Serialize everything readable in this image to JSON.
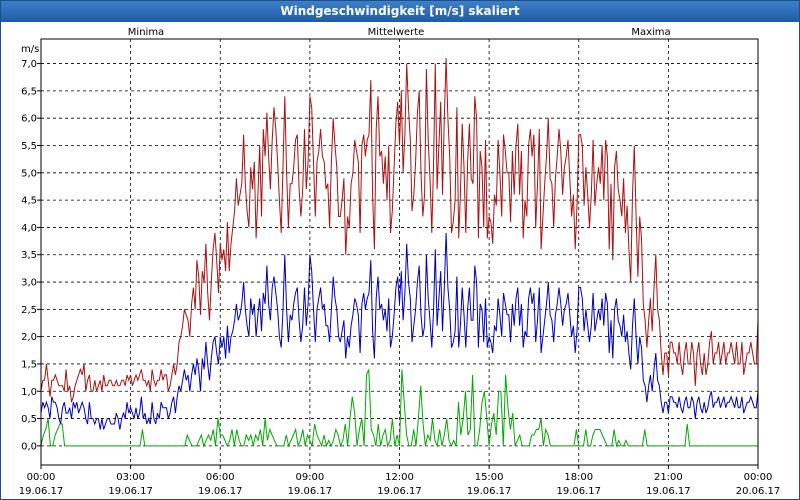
{
  "window": {
    "title": "Windgeschwindigkeit [m/s] skaliert"
  },
  "chart_data": {
    "type": "line",
    "title": "Windgeschwindigkeit [m/s] skaliert",
    "ylabel": "m/s",
    "ylim": [
      -0.35,
      7.45
    ],
    "xlim_hours": [
      0,
      24
    ],
    "grid": true,
    "legend_placement": "top",
    "y_ticks": [
      "0,0",
      "0,5",
      "1,0",
      "1,5",
      "2,0",
      "2,5",
      "3,0",
      "3,5",
      "4,0",
      "4,5",
      "5,0",
      "5,5",
      "6,0",
      "6,5",
      "7,0"
    ],
    "x_ticks": [
      {
        "time": "00:00",
        "date": "19.06.17"
      },
      {
        "time": "03:00",
        "date": "19.06.17"
      },
      {
        "time": "06:00",
        "date": "19.06.17"
      },
      {
        "time": "09:00",
        "date": "19.06.17"
      },
      {
        "time": "12:00",
        "date": "19.06.17"
      },
      {
        "time": "15:00",
        "date": "19.06.17"
      },
      {
        "time": "18:00",
        "date": "19.06.17"
      },
      {
        "time": "21:00",
        "date": "19.06.17"
      },
      {
        "time": "00:00",
        "date": "20.06.17"
      }
    ],
    "series": [
      {
        "name": "Minima",
        "color": "#00aa00",
        "values": [
          0.0,
          0.2,
          0.3,
          0.5,
          0.0,
          0.0,
          0.2,
          0.3,
          0.4,
          0.4,
          0.0,
          0.0,
          0.0,
          0.0,
          0.0,
          0.0,
          0.0,
          0.0,
          0.0,
          0.0,
          0.0,
          0.0,
          0.0,
          0.0,
          0.0,
          0.0,
          0.0,
          0.0,
          0.0,
          0.0,
          0.0,
          0.0,
          0.0,
          0.0,
          0.0,
          0.0,
          0.0,
          0.0,
          0.0,
          0.0,
          0.0,
          0.0,
          0.0,
          0.3,
          0.0,
          0.0,
          0.0,
          0.0,
          0.0,
          0.0,
          0.0,
          0.0,
          0.0,
          0.0,
          0.0,
          0.0,
          0.0,
          0.0,
          0.0,
          0.0,
          0.0,
          0.0,
          0.2,
          0.1,
          0.0,
          0.0,
          0.0,
          0.1,
          0.2,
          0.0,
          0.1,
          0.2,
          0.1,
          0.3,
          0.0,
          0.5,
          0.2,
          0.2,
          0.1,
          0.0,
          0.1,
          0.3,
          0.0,
          0.3,
          0.1,
          0.0,
          0.0,
          0.2,
          0.1,
          0.2,
          0.0,
          0.2,
          0.1,
          0.3,
          0.0,
          0.5,
          0.1,
          0.3,
          0.2,
          0.1,
          0.0,
          0.0,
          0.0,
          0.0,
          0.2,
          0.0,
          0.1,
          0.2,
          0.3,
          0.0,
          0.1,
          0.3,
          0.0,
          0.2,
          0.1,
          0.0,
          0.4,
          0.2,
          0.1,
          0.0,
          0.2,
          0.0,
          0.1,
          0.0,
          0.1,
          0.3,
          0.2,
          0.0,
          0.1,
          0.4,
          0.0,
          0.5,
          0.9,
          0.6,
          0.0,
          0.3,
          0.5,
          0.0,
          1.3,
          1.4,
          0.3,
          0.2,
          0.0,
          0.4,
          0.0,
          0.2,
          0.3,
          0.0,
          0.1,
          0.5,
          0.0,
          0.2,
          0.0,
          1.4,
          0.8,
          0.2,
          0.0,
          0.0,
          0.3,
          0.0,
          0.5,
          1.1,
          0.4,
          0.0,
          0.2,
          0.1,
          0.5,
          0.1,
          0.0,
          0.3,
          0.0,
          0.2,
          0.5,
          0.1,
          0.0,
          0.1,
          0.0,
          0.8,
          0.2,
          0.5,
          1.0,
          0.2,
          0.3,
          1.3,
          0.0,
          0.0,
          0.3,
          0.8,
          1.0,
          0.5,
          0.0,
          0.4,
          0.6,
          0.2,
          1.0,
          1.0,
          0.0,
          1.3,
          0.7,
          0.3,
          0.6,
          0.0,
          0.1,
          0.2,
          0.0,
          0.0,
          0.0,
          0.0,
          0.2,
          0.2,
          0.3,
          0.3,
          0.5,
          0.0,
          0.3,
          0.2,
          0.0,
          0.0,
          0.0,
          0.0,
          0.0,
          0.0,
          0.0,
          0.0,
          0.0,
          0.0,
          0.0,
          0.3,
          0.0,
          0.0,
          0.0,
          0.3,
          0.0,
          0.0,
          0.2,
          0.3,
          0.3,
          0.3,
          0.2,
          0.1,
          0.0,
          0.0,
          0.0,
          0.3,
          0.0,
          0.1,
          0.0,
          0.0,
          0.1,
          0.0,
          0.0,
          0.0,
          0.0,
          0.0,
          0.0,
          0.0,
          0.3,
          0.0,
          0.0,
          0.0,
          0.0,
          0.0,
          0.0,
          0.0,
          0.0,
          0.0,
          0.0,
          0.0,
          0.0,
          0.0,
          0.0,
          0.0,
          0.0,
          0.0,
          0.4,
          0.0,
          0.0,
          0.0,
          0.0,
          0.0,
          0.0,
          0.0,
          0.0,
          0.0,
          0.0,
          0.0,
          0.0,
          0.0,
          0.0,
          0.0,
          0.0,
          0.0,
          0.0,
          0.0,
          0.0,
          0.0,
          0.0,
          0.0,
          0.0,
          0.0,
          0.0,
          0.0,
          0.0,
          0.0,
          0.0
        ]
      },
      {
        "name": "Mittelwerte",
        "color": "#0000bb",
        "values": [
          0.6,
          0.8,
          0.7,
          0.8,
          0.7,
          0.5,
          0.9,
          0.8,
          0.8,
          0.7,
          0.5,
          0.4,
          0.7,
          0.8,
          0.6,
          0.6,
          0.7,
          0.5,
          0.8,
          0.7,
          0.8,
          0.6,
          0.7,
          0.8,
          0.7,
          0.5,
          0.4,
          0.8,
          0.5,
          0.5,
          0.4,
          0.5,
          0.5,
          0.3,
          0.5,
          0.3,
          0.4,
          0.5,
          0.5,
          0.4,
          0.4,
          0.4,
          0.6,
          0.5,
          0.3,
          0.5,
          0.6,
          0.5,
          0.8,
          0.6,
          0.7,
          0.6,
          0.5,
          0.7,
          0.5,
          0.6,
          0.9,
          0.5,
          0.6,
          0.4,
          0.5,
          0.4,
          0.8,
          0.5,
          0.4,
          0.6,
          0.5,
          0.8,
          0.7,
          0.7,
          0.7,
          0.5,
          0.6,
          0.8,
          0.9,
          0.6,
          0.9,
          1.1,
          1.0,
          1.2,
          1.4,
          1.2,
          1.3,
          1.0,
          1.3,
          1.5,
          1.3,
          1.6,
          1.4,
          1.0,
          1.6,
          1.4,
          1.9,
          1.5,
          1.2,
          1.6,
          1.9,
          2.0,
          1.7,
          1.5,
          2.0,
          1.8,
          2.0,
          1.6,
          2.2,
          1.7,
          2.0,
          2.1,
          2.3,
          2.6,
          2.3,
          2.4,
          2.6,
          3.0,
          2.5,
          2.2,
          2.0,
          2.7,
          2.4,
          2.6,
          2.0,
          2.4,
          2.7,
          2.1,
          2.8,
          2.6,
          3.3,
          2.6,
          2.3,
          2.9,
          3.1,
          2.8,
          2.5,
          2.0,
          1.8,
          2.5,
          3.5,
          2.5,
          1.9,
          2.4,
          2.3,
          2.6,
          2.8,
          2.9,
          2.3,
          1.9,
          2.2,
          2.9,
          2.2,
          2.6,
          3.5,
          3.2,
          2.5,
          1.9,
          2.5,
          2.7,
          2.9,
          2.5,
          2.6,
          2.2,
          2.2,
          1.9,
          2.5,
          3.1,
          2.7,
          2.5,
          2.0,
          1.9,
          2.1,
          2.3,
          1.6,
          2.0,
          1.8,
          2.2,
          2.4,
          2.7,
          2.6,
          2.4,
          1.7,
          2.6,
          2.8,
          2.5,
          2.7,
          2.8,
          3.4,
          2.1,
          1.6,
          2.7,
          3.1,
          2.5,
          2.6,
          2.3,
          2.5,
          2.1,
          2.7,
          1.8,
          2.0,
          2.4,
          2.9,
          3.1,
          2.6,
          3.2,
          2.3,
          2.8,
          3.7,
          3.0,
          2.7,
          1.9,
          2.2,
          2.5,
          3.0,
          3.3,
          2.4,
          2.0,
          2.2,
          3.5,
          2.7,
          2.3,
          1.8,
          2.5,
          3.6,
          2.2,
          2.7,
          3.2,
          2.1,
          2.9,
          3.9,
          2.9,
          2.5,
          1.8,
          1.9,
          2.1,
          3.1,
          1.8,
          2.2,
          2.9,
          2.4,
          1.8,
          2.5,
          2.9,
          2.3,
          2.3,
          3.3,
          3.0,
          1.8,
          2.6,
          2.5,
          1.9,
          2.7,
          1.8,
          2.0,
          1.9,
          1.7,
          2.2,
          2.1,
          2.7,
          2.4,
          2.0,
          2.8,
          2.6,
          2.4,
          2.4,
          1.9,
          2.6,
          2.2,
          2.7,
          2.9,
          2.2,
          2.6,
          1.8,
          2.1,
          2.0,
          2.7,
          2.9,
          2.6,
          2.8,
          1.9,
          2.3,
          2.9,
          1.7,
          2.0,
          2.3,
          2.6,
          3.0,
          2.4,
          2.3,
          1.9,
          2.4,
          2.6,
          2.9,
          2.6,
          2.2,
          2.5,
          2.6,
          2.8,
          2.4,
          2.0,
          2.2,
          1.7,
          2.1,
          2.9,
          2.9,
          2.7,
          2.1,
          2.5,
          2.2,
          1.9,
          2.2,
          2.8,
          2.1,
          2.3,
          2.5,
          2.3,
          2.7,
          2.2,
          2.8,
          2.6,
          1.7,
          2.3,
          1.6,
          2.5,
          2.7,
          2.3,
          2.2,
          2.0,
          2.4,
          1.9,
          2.1,
          1.7,
          1.4,
          2.2,
          2.7,
          2.0,
          1.5,
          2.0,
          1.8,
          1.2,
          1.1,
          0.8,
          1.1,
          1.3,
          1.0,
          1.4,
          1.7,
          1.2,
          1.1,
          0.8,
          0.6,
          0.8,
          0.8,
          0.6,
          0.9,
          0.9,
          0.8,
          0.8,
          0.7,
          0.9,
          0.7,
          0.6,
          0.8,
          0.9,
          0.7,
          0.7,
          0.9,
          0.8,
          0.5,
          0.8,
          0.9,
          0.7,
          0.6,
          0.8,
          0.6,
          0.7,
          0.9,
          1.0,
          0.7,
          0.8,
          0.8,
          0.9,
          0.7,
          0.8,
          0.9,
          0.7,
          0.8,
          0.8,
          0.9,
          0.8,
          0.7,
          0.9,
          0.7,
          0.7,
          0.9,
          0.6,
          0.7,
          0.8,
          0.8,
          0.9,
          0.8,
          0.7,
          0.7,
          1.0
        ]
      },
      {
        "name": "Maxima",
        "color": "#aa1111",
        "values": [
          1.0,
          1.2,
          1.2,
          1.5,
          1.2,
          0.9,
          1.2,
          1.2,
          1.3,
          1.2,
          1.1,
          1.1,
          1.1,
          1.0,
          1.4,
          1.0,
          1.1,
          0.8,
          0.9,
          1.1,
          1.2,
          1.3,
          1.4,
          1.3,
          1.5,
          1.0,
          1.2,
          1.3,
          1.0,
          1.0,
          1.2,
          1.0,
          1.1,
          1.2,
          1.0,
          1.3,
          1.1,
          1.1,
          1.2,
          1.2,
          1.1,
          1.1,
          1.2,
          1.1,
          1.1,
          1.2,
          1.2,
          1.1,
          1.3,
          1.2,
          1.3,
          1.1,
          1.2,
          1.3,
          1.2,
          1.3,
          1.4,
          1.2,
          1.2,
          1.1,
          1.2,
          1.0,
          1.4,
          1.2,
          1.1,
          1.2,
          1.2,
          1.4,
          1.2,
          1.3,
          1.3,
          1.0,
          1.1,
          1.3,
          1.5,
          1.3,
          1.5,
          1.9,
          2.0,
          2.2,
          2.5,
          2.4,
          2.3,
          2.0,
          2.6,
          2.9,
          2.5,
          3.4,
          3.1,
          2.4,
          3.2,
          3.0,
          3.7,
          2.8,
          2.3,
          3.0,
          3.6,
          3.9,
          3.4,
          2.8,
          3.7,
          3.4,
          3.6,
          3.2,
          4.1,
          3.2,
          3.7,
          4.0,
          4.3,
          4.9,
          4.4,
          4.6,
          4.8,
          5.7,
          4.8,
          4.3,
          4.0,
          5.1,
          4.7,
          5.2,
          3.8,
          4.6,
          5.5,
          4.2,
          5.8,
          5.3,
          6.1,
          5.3,
          4.7,
          5.6,
          6.2,
          5.8,
          5.2,
          4.5,
          3.9,
          5.1,
          6.4,
          5.0,
          4.0,
          4.8,
          4.8,
          5.1,
          5.6,
          5.7,
          4.7,
          4.2,
          4.7,
          5.8,
          4.7,
          5.2,
          6.4,
          6.2,
          5.2,
          4.2,
          5.2,
          5.4,
          5.8,
          5.3,
          5.2,
          4.7,
          4.8,
          4.0,
          5.2,
          6.0,
          5.5,
          5.1,
          4.2,
          4.2,
          4.5,
          4.9,
          3.5,
          4.2,
          4.0,
          4.8,
          5.0,
          5.6,
          5.4,
          5.2,
          3.9,
          5.5,
          5.7,
          5.3,
          5.6,
          5.7,
          6.7,
          4.6,
          3.6,
          5.8,
          6.4,
          5.3,
          5.4,
          4.8,
          5.3,
          4.5,
          5.5,
          3.9,
          4.3,
          5.1,
          5.9,
          6.3,
          5.5,
          6.5,
          5.0,
          5.7,
          7.0,
          6.2,
          5.6,
          4.3,
          4.6,
          5.2,
          6.1,
          6.5,
          5.0,
          4.2,
          4.6,
          6.9,
          5.6,
          4.9,
          3.9,
          5.2,
          7.0,
          4.7,
          5.5,
          6.3,
          4.6,
          6.0,
          7.1,
          6.0,
          5.3,
          3.9,
          4.1,
          4.5,
          6.2,
          3.8,
          4.6,
          5.9,
          5.1,
          3.9,
          5.2,
          5.9,
          4.9,
          4.8,
          6.4,
          6.0,
          3.8,
          5.4,
          5.1,
          4.0,
          5.6,
          3.8,
          4.2,
          4.1,
          3.7,
          4.6,
          4.4,
          5.6,
          5.0,
          4.2,
          5.7,
          5.4,
          5.0,
          5.0,
          4.1,
          5.4,
          4.6,
          5.5,
          5.9,
          4.6,
          5.4,
          3.8,
          4.5,
          4.2,
          5.5,
          5.8,
          5.3,
          5.7,
          4.0,
          4.8,
          5.8,
          3.6,
          4.2,
          4.8,
          5.3,
          6.0,
          4.9,
          4.8,
          4.0,
          4.9,
          5.3,
          5.8,
          5.4,
          4.6,
          5.1,
          5.3,
          5.6,
          4.9,
          4.2,
          4.6,
          3.6,
          4.4,
          5.7,
          5.7,
          5.5,
          4.4,
          5.1,
          4.6,
          4.0,
          4.6,
          5.6,
          4.4,
          4.8,
          5.1,
          4.8,
          5.5,
          4.5,
          5.6,
          5.3,
          3.6,
          4.8,
          3.4,
          5.1,
          5.4,
          4.7,
          4.5,
          4.2,
          4.9,
          3.9,
          4.4,
          3.6,
          3.0,
          4.6,
          5.5,
          4.2,
          3.1,
          4.2,
          3.8,
          2.6,
          2.3,
          1.8,
          2.3,
          2.7,
          2.1,
          2.9,
          3.5,
          2.5,
          2.3,
          1.7,
          1.3,
          1.7,
          1.7,
          1.3,
          1.9,
          1.9,
          1.7,
          1.7,
          1.5,
          1.9,
          1.5,
          1.3,
          1.7,
          1.9,
          1.5,
          1.5,
          1.9,
          1.7,
          1.1,
          1.7,
          1.9,
          1.5,
          1.3,
          1.7,
          1.3,
          1.5,
          1.9,
          2.1,
          1.5,
          1.7,
          1.7,
          1.9,
          1.5,
          1.7,
          1.9,
          1.5,
          1.7,
          1.7,
          1.9,
          1.7,
          1.5,
          1.9,
          1.5,
          1.5,
          1.9,
          1.3,
          1.5,
          1.7,
          1.7,
          1.9,
          1.7,
          1.5,
          1.5,
          2.3
        ]
      }
    ]
  }
}
